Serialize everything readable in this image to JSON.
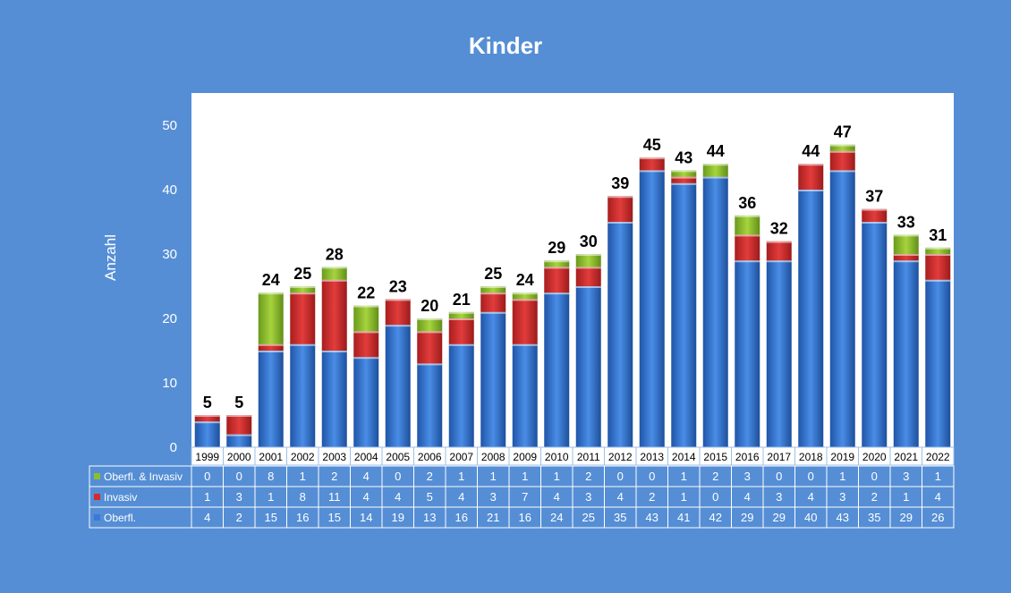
{
  "chart_data": {
    "type": "bar",
    "stacked": true,
    "title": "Kinder",
    "ylabel": "Anzahl",
    "ylim": [
      0,
      55
    ],
    "yticks": [
      0,
      10,
      20,
      30,
      40,
      50
    ],
    "categories": [
      "1999",
      "2000",
      "2001",
      "2002",
      "2003",
      "2004",
      "2005",
      "2006",
      "2007",
      "2008",
      "2009",
      "2010",
      "2011",
      "2012",
      "2013",
      "2014",
      "2015",
      "2016",
      "2017",
      "2018",
      "2019",
      "2020",
      "2021",
      "2022"
    ],
    "series": [
      {
        "name": "Oberfl.",
        "color": "#2e6fcf",
        "values": [
          4,
          2,
          15,
          16,
          15,
          14,
          19,
          13,
          16,
          21,
          16,
          24,
          25,
          35,
          43,
          41,
          42,
          29,
          29,
          40,
          43,
          35,
          29,
          26
        ]
      },
      {
        "name": "Invasiv",
        "color": "#d42a2a",
        "values": [
          1,
          3,
          1,
          8,
          11,
          4,
          4,
          5,
          4,
          3,
          7,
          4,
          3,
          4,
          2,
          1,
          0,
          4,
          3,
          4,
          3,
          2,
          1,
          4
        ]
      },
      {
        "name": "Oberfl. & Invasiv",
        "color": "#8cc02a",
        "values": [
          0,
          0,
          8,
          1,
          2,
          4,
          0,
          2,
          1,
          1,
          1,
          1,
          2,
          0,
          0,
          1,
          2,
          3,
          0,
          0,
          1,
          0,
          3,
          1
        ]
      }
    ],
    "totals": [
      5,
      5,
      24,
      25,
      28,
      22,
      23,
      20,
      21,
      25,
      24,
      29,
      30,
      39,
      45,
      43,
      44,
      36,
      32,
      44,
      47,
      37,
      33,
      31
    ],
    "grid": false,
    "data_table": true
  }
}
